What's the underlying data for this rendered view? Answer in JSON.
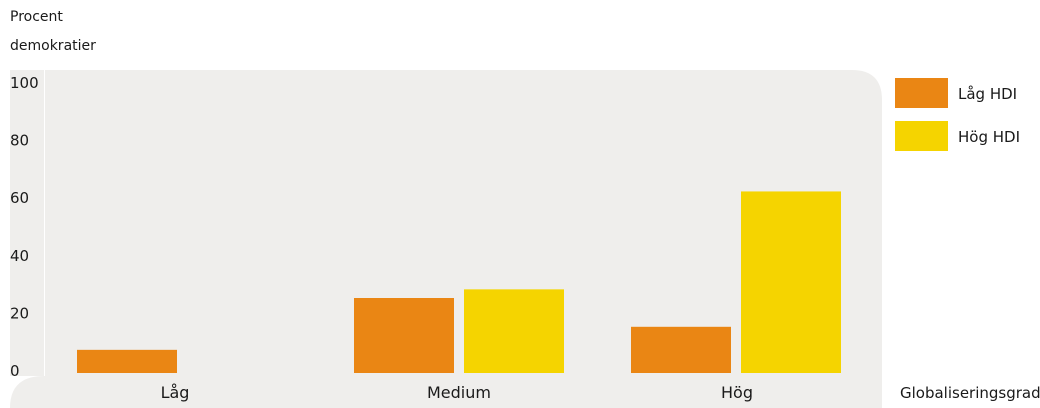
{
  "chart_data": {
    "type": "bar",
    "ylabel": "Procent demokratier",
    "ylabel_lines": [
      "Procent",
      "demokratier"
    ],
    "xlabel": "Globaliseringsgrad",
    "categories": [
      "Låg",
      "Medium",
      "Hög"
    ],
    "ylim": [
      0,
      100
    ],
    "yticks": [
      0,
      20,
      40,
      60,
      80,
      100
    ],
    "series": [
      {
        "name": "Låg HDI",
        "color": "#ea8614",
        "values": [
          7,
          25,
          15
        ]
      },
      {
        "name": "Hög HDI",
        "color": "#f5d400",
        "values": [
          0,
          28,
          62
        ]
      }
    ],
    "legend": "right",
    "grid": false,
    "plot_background": "#efeeec"
  }
}
